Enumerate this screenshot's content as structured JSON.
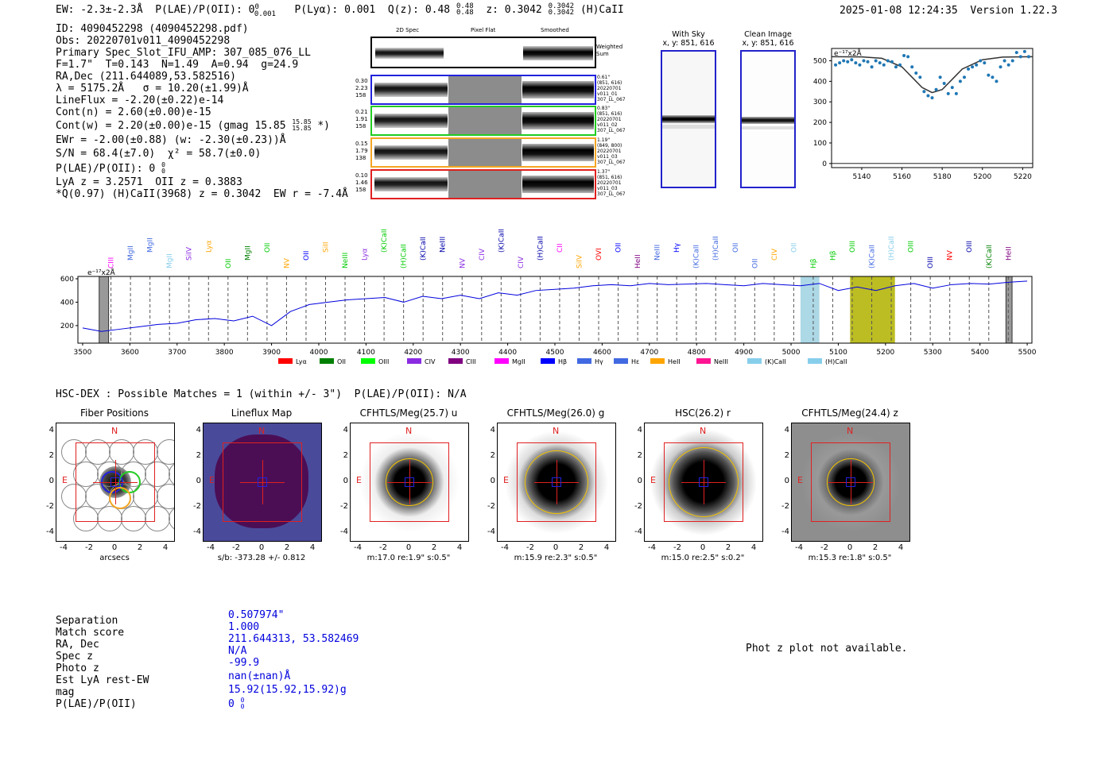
{
  "header": {
    "left": "EW: -2.3±-2.3Å  P(LAE)/P(OII): 0",
    "pl_sup": "0",
    "pl_sub": "0.001",
    "lya": "P(Lyα): 0.001",
    "qz": "Q(z): 0.48",
    "qz_sup": "0.48",
    "qz_sub": "0.48",
    "z": "z: 0.3042",
    "z_sup": "0.3042",
    "z_sub": "0.3042",
    "line": "(H)CaII",
    "datetime": "2025-01-08 12:24:35",
    "version": "Version 1.22.3"
  },
  "info": {
    "lines": [
      "ID: 4090452298 (4090452298.pdf)",
      "Obs: 20220701v011_4090452298",
      "Primary Spec_Slot_IFU_AMP: 307_085_076_LL",
      "F=1.7\"  T=0.143  N=1.49  A=0.94  g=24.9",
      "RA,Dec (211.644089,53.582516)",
      "λ = 5175.2Å   σ = 10.20(±1.99)Å",
      "LineFlux = -2.20(±0.22)e-14",
      "Cont(n) = 2.60(±0.00)e-15",
      "Cont(w) = 2.20(±0.00)e-15 (gmag 15.85",
      "EWr = -2.00(±0.88) (w: -2.30(±0.23))Å",
      "S/N = 68.4(±7.0)  χ² = 58.7(±0.0)",
      "P(LAE)/P(OII): 0",
      "LyA z = 3.2571  OII z = 0.3883",
      "*Q(0.97) (H)CaII(3968) z = 0.3042  EW r = -7.4Å"
    ],
    "gmag_sup": "15.85",
    "gmag_sub": "15.85",
    "gmag_close": "*)",
    "pl_sup": "0",
    "pl_sub": "0"
  },
  "cutouts": {
    "col_headers": [
      "2D Spec",
      "Pixel Flat",
      "Smoothed"
    ],
    "weighted_sum": "Weighted\nSum",
    "rows": [
      {
        "left": "0.30\n2.23\n158",
        "right": "0.61\"\n(851, 616)\n20220701\nv011_01\n307_LL_067",
        "color": "#2222dd"
      },
      {
        "left": "0.21\n1.91\n158",
        "right": "0.83\"\n(851, 616)\n20220701\nv011_02\n307_LL_067",
        "color": "#22cc22"
      },
      {
        "left": "0.15\n1.79\n138",
        "right": "1.19\"\n(849, 800)\n20220701\nv011_03\n307_LL_067",
        "color": "#f5a623"
      },
      {
        "left": "0.10\n1.46\n158",
        "right": "1.37\"\n(851, 616)\n20220701\nv011_03\n307_LL_067",
        "color": "#e02020"
      }
    ]
  },
  "sky_panels": [
    {
      "title": "With Sky",
      "coords": "x, y: 851, 616"
    },
    {
      "title": "Clean Image",
      "coords": "x, y: 851, 616"
    }
  ],
  "zoom_plot": {
    "unit": "e⁻¹⁷x2Å",
    "xticks": [
      "5140",
      "5160",
      "5180",
      "5200",
      "5220"
    ],
    "yticks": [
      "500",
      "400",
      "300",
      "200",
      "100",
      "0"
    ]
  },
  "spectrum": {
    "unit": "e⁻¹⁷x2Å",
    "xticks": [
      "3500",
      "3600",
      "3700",
      "3800",
      "3900",
      "4000",
      "4100",
      "4200",
      "4300",
      "4400",
      "4500",
      "4600",
      "4700",
      "4800",
      "4900",
      "5000",
      "5100",
      "5200",
      "5300",
      "5400",
      "5500"
    ],
    "yticks": [
      "600",
      "400",
      "200"
    ],
    "legend": [
      {
        "label": "Lyα",
        "color": "#ff0000"
      },
      {
        "label": "OII",
        "color": "#008000"
      },
      {
        "label": "OIII",
        "color": "#00ff00"
      },
      {
        "label": "CIV",
        "color": "#8a2be2"
      },
      {
        "label": "CIII",
        "color": "#800080"
      },
      {
        "label": "MgII",
        "color": "#ff00ff"
      },
      {
        "label": "Hβ",
        "color": "#0000ff"
      },
      {
        "label": "Hγ",
        "color": "#4169e1"
      },
      {
        "label": "Hε",
        "color": "#4169e1"
      },
      {
        "label": "HeII",
        "color": "#ffa500"
      },
      {
        "label": "NeIII",
        "color": "#ff1493"
      },
      {
        "label": "(K)CaII",
        "color": "#87ceeb"
      },
      {
        "label": "(H)CaII",
        "color": "#87ceeb"
      }
    ],
    "line_labels": [
      {
        "text": "CIII",
        "color": "#ff00ff"
      },
      {
        "text": "MgII",
        "color": "#4169e1"
      },
      {
        "text": "MgII",
        "color": "#4169e1"
      },
      {
        "text": "MgII",
        "color": "#87ceeb"
      },
      {
        "text": "SiIV",
        "color": "#8a2be2"
      },
      {
        "text": "Lyα",
        "color": "#ffa500"
      },
      {
        "text": "OII",
        "color": "#00cc00"
      },
      {
        "text": "MgII",
        "color": "#008000"
      },
      {
        "text": "OII",
        "color": "#00cc00"
      },
      {
        "text": "NV",
        "color": "#ffa500"
      },
      {
        "text": "OII",
        "color": "#0000ff"
      },
      {
        "text": "SiII",
        "color": "#ffa500"
      },
      {
        "text": "NeIII",
        "color": "#00cc00"
      },
      {
        "text": "Lyα",
        "color": "#8a2be2"
      },
      {
        "text": "(K)CaII",
        "color": "#00cc00"
      },
      {
        "text": "(H)CaII",
        "color": "#00cc00"
      },
      {
        "text": "(K)CaII",
        "color": "#0000aa"
      },
      {
        "text": "NeIII",
        "color": "#0000aa"
      },
      {
        "text": "NV",
        "color": "#8a2be2"
      },
      {
        "text": "CIV",
        "color": "#8a2be2"
      },
      {
        "text": "(K)CaII",
        "color": "#0000aa"
      },
      {
        "text": "CIV",
        "color": "#8a2be2"
      },
      {
        "text": "(H)CaII",
        "color": "#0000aa"
      },
      {
        "text": "CII",
        "color": "#ff00ff"
      },
      {
        "text": "SiIV",
        "color": "#ffa500"
      },
      {
        "text": "OVI",
        "color": "#ff0000"
      },
      {
        "text": "OII",
        "color": "#0000ff"
      },
      {
        "text": "HeII",
        "color": "#800080"
      },
      {
        "text": "NeIII",
        "color": "#4169e1"
      },
      {
        "text": "Hγ",
        "color": "#0000ff"
      },
      {
        "text": "(K)CaII",
        "color": "#4169e1"
      },
      {
        "text": "(H)CaII",
        "color": "#4169e1"
      },
      {
        "text": "OII",
        "color": "#4169e1"
      },
      {
        "text": "OII",
        "color": "#4169e1"
      },
      {
        "text": "CIV",
        "color": "#ffa500"
      },
      {
        "text": "OII",
        "color": "#87ceeb"
      },
      {
        "text": "Hβ",
        "color": "#00cc00"
      },
      {
        "text": "Hβ",
        "color": "#00cc00"
      },
      {
        "text": "OIII",
        "color": "#00cc00"
      },
      {
        "text": "(K)CaII",
        "color": "#4169e1"
      },
      {
        "text": "(H)CaII",
        "color": "#87ceeb"
      },
      {
        "text": "OIII",
        "color": "#00cc00"
      },
      {
        "text": "OIII",
        "color": "#0000aa"
      },
      {
        "text": "NV",
        "color": "#ff0000"
      },
      {
        "text": "OIII",
        "color": "#0000aa"
      },
      {
        "text": "(K)CaII",
        "color": "#008000"
      },
      {
        "text": "HeII",
        "color": "#800080"
      }
    ]
  },
  "hsc_header": "HSC-DEX : Possible Matches = 1 (within +/- 3\")  P(LAE)/P(OII): N/A",
  "image_panels": [
    {
      "title": "Fiber Positions",
      "footer": "arcsecs",
      "N": "N",
      "E": "E"
    },
    {
      "title": "Lineflux Map",
      "footer": "s/b: -373.28 +/- 0.812",
      "N": "N",
      "E": "E"
    },
    {
      "title": "CFHTLS/Meg(25.7) u",
      "footer": "m:17.0  re:1.9\"  s:0.5\"",
      "N": "N",
      "E": "E"
    },
    {
      "title": "CFHTLS/Meg(26.0) g",
      "footer": "m:15.9  re:2.3\"  s:0.5\"",
      "N": "N",
      "E": "E"
    },
    {
      "title": "HSC(26.2) r",
      "footer": "m:15.0  re:2.5\"  s:0.2\"",
      "N": "N",
      "E": "E"
    },
    {
      "title": "CFHTLS/Meg(24.4) z",
      "footer": "m:15.3  re:1.8\"  s:0.5\"",
      "N": "N",
      "E": "E"
    }
  ],
  "panel_ticks": {
    "x": [
      "-4",
      "-2",
      "0",
      "2",
      "4"
    ],
    "y": [
      "4",
      "2",
      "0",
      "-2",
      "-4"
    ]
  },
  "match_table": {
    "labels": [
      "Separation",
      "Match score",
      "RA, Dec",
      "Spec z",
      "Photo z",
      "Est LyA rest-EW",
      "mag",
      "P(LAE)/P(OII)"
    ],
    "values": [
      "0.507974\"",
      "1.000",
      "211.644313, 53.582469",
      "N/A",
      "-99.9",
      "nan(±nan)Å",
      "15.92(15.92,15.92)g",
      "0"
    ],
    "plae_sup": "0",
    "plae_sub": "0"
  },
  "phot_z_msg": "Phot z plot not available.",
  "chart_data": [
    {
      "type": "scatter",
      "title": "",
      "xlabel": "",
      "ylabel": "e⁻¹⁷x2Å",
      "xlim": [
        5125,
        5225
      ],
      "ylim": [
        -20,
        560
      ],
      "x": [
        5127,
        5129,
        5131,
        5133,
        5135,
        5137,
        5139,
        5141,
        5143,
        5145,
        5147,
        5149,
        5151,
        5153,
        5155,
        5157,
        5159,
        5161,
        5163,
        5165,
        5167,
        5169,
        5171,
        5173,
        5175,
        5177,
        5179,
        5181,
        5183,
        5185,
        5187,
        5189,
        5191,
        5193,
        5195,
        5197,
        5199,
        5201,
        5203,
        5205,
        5207,
        5209,
        5211,
        5213,
        5215,
        5217,
        5219,
        5221,
        5223
      ],
      "y": [
        480,
        490,
        500,
        495,
        505,
        490,
        480,
        500,
        495,
        470,
        500,
        490,
        480,
        500,
        495,
        470,
        480,
        525,
        520,
        470,
        440,
        420,
        350,
        330,
        320,
        360,
        420,
        390,
        340,
        370,
        340,
        400,
        420,
        460,
        470,
        480,
        500,
        490,
        430,
        420,
        400,
        470,
        500,
        480,
        500,
        540,
        520,
        545,
        520
      ],
      "series": [
        {
          "name": "fit",
          "x": [
            5125,
            5140,
            5150,
            5160,
            5165,
            5170,
            5175,
            5180,
            5185,
            5190,
            5200,
            5210,
            5225
          ],
          "y": [
            520,
            519,
            512,
            470,
            420,
            370,
            345,
            360,
            410,
            460,
            505,
            518,
            520
          ]
        }
      ]
    },
    {
      "type": "line",
      "title": "",
      "xlabel": "",
      "ylabel": "e⁻¹⁷x2Å",
      "xlim": [
        3490,
        5510
      ],
      "ylim": [
        50,
        620
      ],
      "x": [
        3500,
        3540,
        3580,
        3620,
        3660,
        3700,
        3740,
        3780,
        3820,
        3860,
        3900,
        3940,
        3980,
        4020,
        4060,
        4100,
        4140,
        4180,
        4220,
        4260,
        4300,
        4340,
        4380,
        4420,
        4460,
        4500,
        4540,
        4580,
        4620,
        4660,
        4700,
        4740,
        4780,
        4820,
        4860,
        4900,
        4940,
        4980,
        5020,
        5060,
        5100,
        5140,
        5180,
        5220,
        5260,
        5300,
        5340,
        5380,
        5420,
        5460,
        5500
      ],
      "y": [
        180,
        150,
        170,
        190,
        210,
        220,
        250,
        260,
        240,
        280,
        200,
        320,
        380,
        400,
        420,
        430,
        440,
        400,
        450,
        430,
        460,
        430,
        480,
        460,
        500,
        510,
        520,
        540,
        550,
        540,
        560,
        550,
        555,
        560,
        550,
        540,
        560,
        550,
        540,
        560,
        500,
        530,
        500,
        540,
        560,
        520,
        550,
        560,
        555,
        570,
        580
      ],
      "highlight_ranges": [
        [
          5020,
          5060
        ],
        [
          5125,
          5220
        ]
      ],
      "mask_ranges": [
        [
          3535,
          3555
        ],
        [
          5455,
          5468
        ]
      ]
    }
  ]
}
